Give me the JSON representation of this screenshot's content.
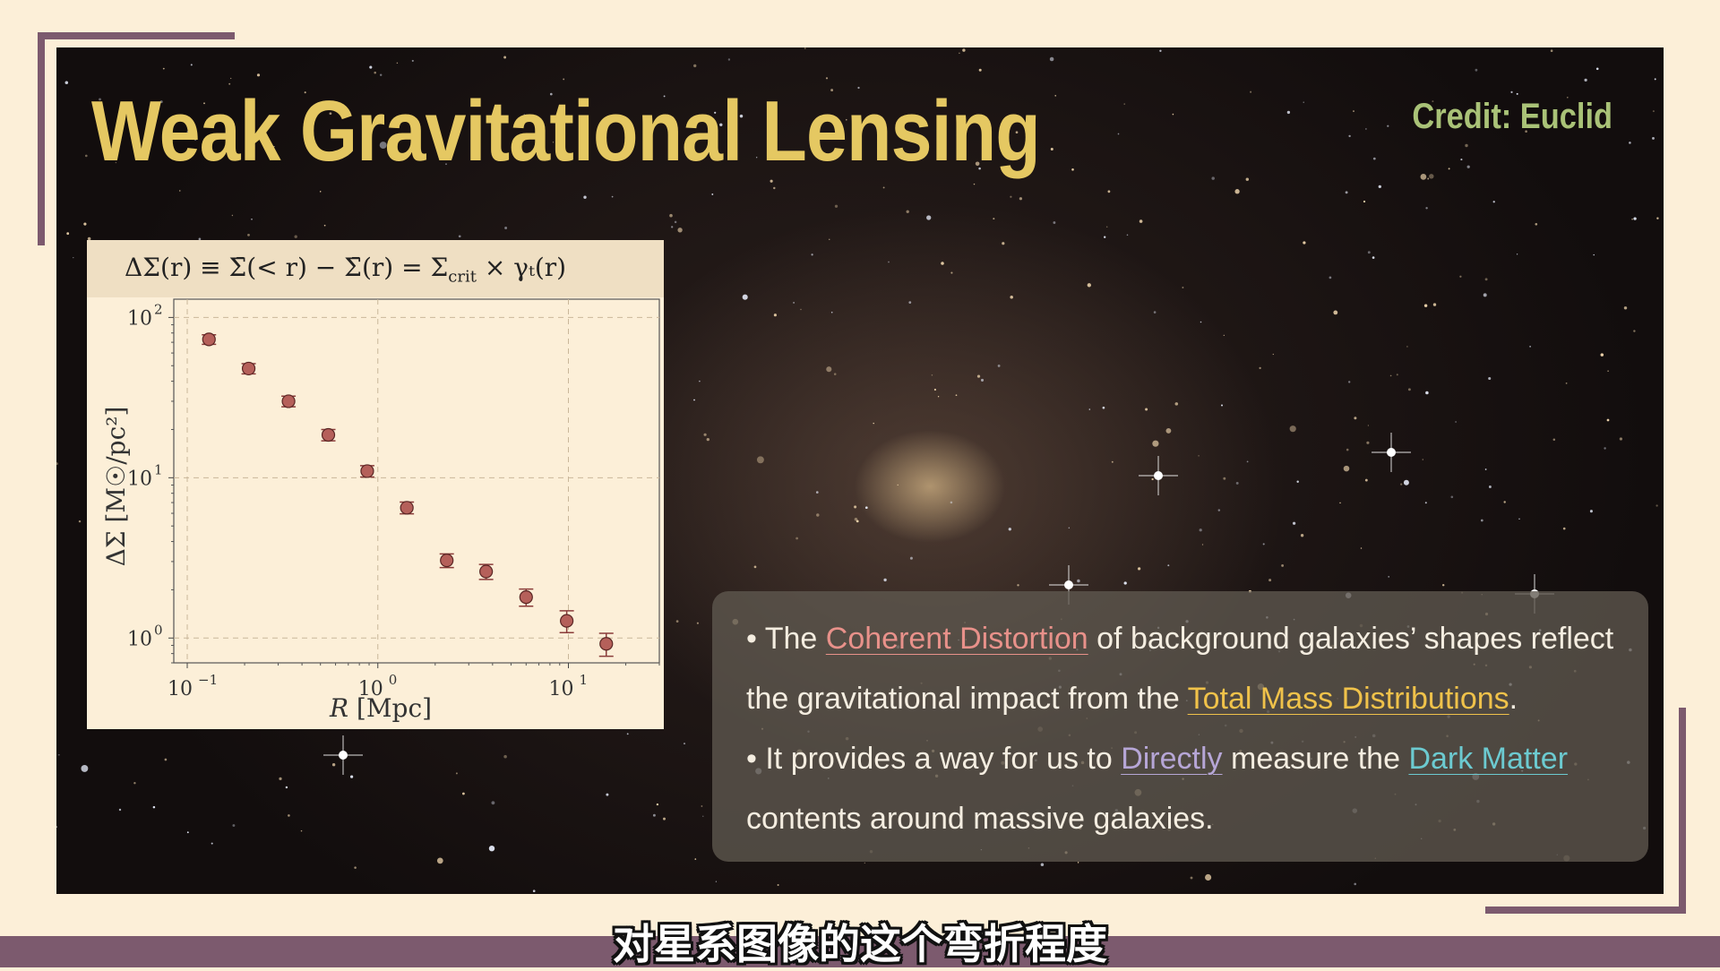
{
  "slide": {
    "title": "Weak Gravitational Lensing",
    "credit": "Credit: Euclid",
    "subtitle": "对星系图像的这个弯折程度"
  },
  "info": {
    "bullet1": {
      "prefix": "• The ",
      "highlight1": "Coherent Distortion",
      "middle": " of background galaxies’ shapes reflect the gravitational impact from the ",
      "highlight2": "Total Mass Distributions",
      "suffix": "."
    },
    "bullet2": {
      "prefix": "• It provides a way for us to ",
      "highlight1": "Directly",
      "middle": " measure the ",
      "highlight2": "Dark Matter",
      "suffix": " contents around massive galaxies."
    }
  },
  "colors": {
    "title": "#e5c862",
    "credit": "#a9c277",
    "coherent_distortion": "#e8918a",
    "total_mass": "#f0c24a",
    "directly": "#b6a6d6",
    "dark_matter": "#6ccad0",
    "frame": "#7c5a6e",
    "marker_fill": "#b5605a"
  },
  "chart_data": {
    "type": "scatter",
    "equation": {
      "lhs": "ΔΣ(r) ≡ Σ̄(< r) − Σ̄(r) = Σ",
      "sub": "crit",
      "rhs": " × γₜ(r)"
    },
    "xscale": "log",
    "yscale": "log",
    "xlim": [
      0.085,
      30
    ],
    "ylim": [
      0.7,
      130
    ],
    "xlabel_main": "R",
    "xlabel_unit": "[Mpc]",
    "ylabel": "ΔΣ [M☉/pc²]",
    "xticks": [
      {
        "value": 0.1,
        "base": "10",
        "exp": "−1"
      },
      {
        "value": 1,
        "base": "10",
        "exp": "0"
      },
      {
        "value": 10,
        "base": "10",
        "exp": "1"
      }
    ],
    "yticks": [
      {
        "value": 1,
        "base": "10",
        "exp": "0"
      },
      {
        "value": 10,
        "base": "10",
        "exp": "1"
      },
      {
        "value": 100,
        "base": "10",
        "exp": "2"
      }
    ],
    "grid": true,
    "points": [
      {
        "x": 0.13,
        "y": 73,
        "err": 5
      },
      {
        "x": 0.21,
        "y": 48,
        "err": 3.5
      },
      {
        "x": 0.34,
        "y": 30,
        "err": 2.3
      },
      {
        "x": 0.55,
        "y": 18.5,
        "err": 1.5
      },
      {
        "x": 0.88,
        "y": 11,
        "err": 0.9
      },
      {
        "x": 1.42,
        "y": 6.5,
        "err": 0.55
      },
      {
        "x": 2.3,
        "y": 3.05,
        "err": 0.3
      },
      {
        "x": 3.7,
        "y": 2.6,
        "err": 0.28
      },
      {
        "x": 6.0,
        "y": 1.8,
        "err": 0.22
      },
      {
        "x": 9.8,
        "y": 1.28,
        "err": 0.2
      },
      {
        "x": 15.8,
        "y": 0.92,
        "err": 0.15
      }
    ]
  }
}
